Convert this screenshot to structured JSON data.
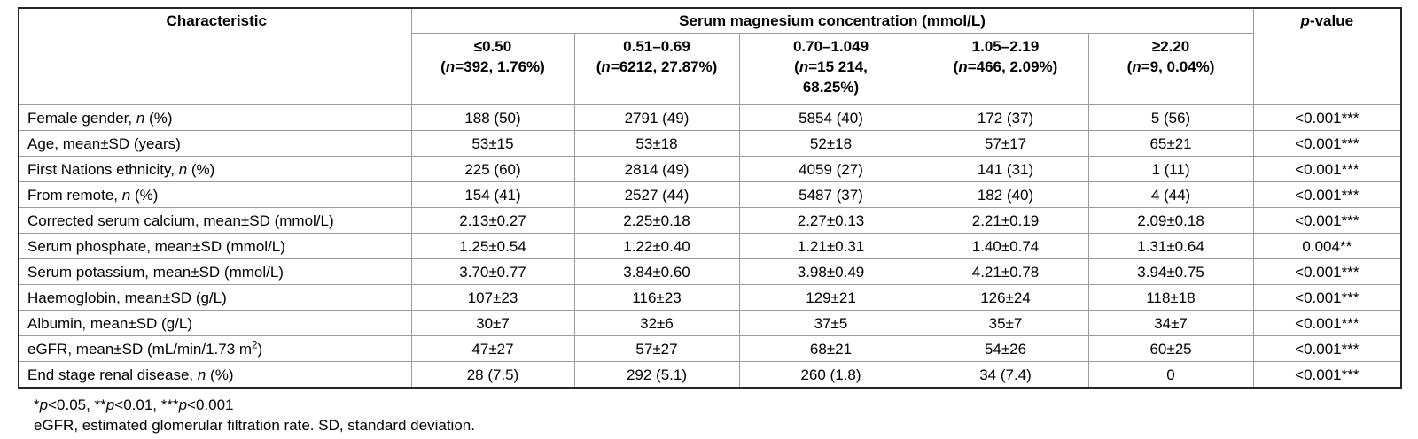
{
  "table": {
    "characteristic_header": "Characteristic",
    "group_header": "Serum magnesium concentration (mmol/L)",
    "pvalue_header_parts": [
      {
        "t": "p",
        "i": true
      },
      {
        "t": "-value"
      }
    ],
    "columns": [
      {
        "parts": [
          {
            "t": "≤0.50"
          },
          {
            "br": true
          },
          {
            "t": "("
          },
          {
            "t": "n",
            "i": true
          },
          {
            "t": "=392, 1.76%)"
          }
        ]
      },
      {
        "parts": [
          {
            "t": "0.51–0.69"
          },
          {
            "br": true
          },
          {
            "t": "("
          },
          {
            "t": "n",
            "i": true
          },
          {
            "t": "=6212, 27.87%)"
          }
        ]
      },
      {
        "parts": [
          {
            "t": "0.70–1.049"
          },
          {
            "br": true
          },
          {
            "t": "("
          },
          {
            "t": "n",
            "i": true
          },
          {
            "t": "=15 214,"
          },
          {
            "br": true
          },
          {
            "t": "68.25%)"
          }
        ]
      },
      {
        "parts": [
          {
            "t": "1.05–2.19"
          },
          {
            "br": true
          },
          {
            "t": "("
          },
          {
            "t": "n",
            "i": true
          },
          {
            "t": "=466, 2.09%)"
          }
        ]
      },
      {
        "parts": [
          {
            "t": "≥2.20"
          },
          {
            "br": true
          },
          {
            "t": "("
          },
          {
            "t": "n",
            "i": true
          },
          {
            "t": "=9, 0.04%)"
          }
        ]
      }
    ],
    "rows": [
      {
        "label_parts": [
          {
            "t": "Female gender, "
          },
          {
            "t": "n",
            "i": true
          },
          {
            "t": " (%)"
          }
        ],
        "values": [
          "188 (50)",
          "2791 (49)",
          "5854 (40)",
          "172 (37)",
          "5 (56)"
        ],
        "p": "<0.001***"
      },
      {
        "label_parts": [
          {
            "t": "Age, mean±SD (years)"
          }
        ],
        "values": [
          "53±15",
          "53±18",
          "52±18",
          "57±17",
          "65±21"
        ],
        "p": "<0.001***"
      },
      {
        "label_parts": [
          {
            "t": "First Nations ethnicity, "
          },
          {
            "t": "n",
            "i": true
          },
          {
            "t": " (%)"
          }
        ],
        "values": [
          "225 (60)",
          "2814 (49)",
          "4059 (27)",
          "141 (31)",
          "1 (11)"
        ],
        "p": "<0.001***"
      },
      {
        "label_parts": [
          {
            "t": "From remote, "
          },
          {
            "t": "n",
            "i": true
          },
          {
            "t": " (%)"
          }
        ],
        "values": [
          "154 (41)",
          "2527 (44)",
          "5487 (37)",
          "182 (40)",
          "4 (44)"
        ],
        "p": "<0.001***"
      },
      {
        "label_parts": [
          {
            "t": "Corrected serum calcium, mean±SD (mmol/L)"
          }
        ],
        "values": [
          "2.13±0.27",
          "2.25±0.18",
          "2.27±0.13",
          "2.21±0.19",
          "2.09±0.18"
        ],
        "p": "<0.001***"
      },
      {
        "label_parts": [
          {
            "t": "Serum phosphate, mean±SD (mmol/L)"
          }
        ],
        "values": [
          "1.25±0.54",
          "1.22±0.40",
          "1.21±0.31",
          "1.40±0.74",
          "1.31±0.64"
        ],
        "p": "0.004**"
      },
      {
        "label_parts": [
          {
            "t": "Serum potassium, mean±SD (mmol/L)"
          }
        ],
        "values": [
          "3.70±0.77",
          "3.84±0.60",
          "3.98±0.49",
          "4.21±0.78",
          "3.94±0.75"
        ],
        "p": "<0.001***"
      },
      {
        "label_parts": [
          {
            "t": "Haemoglobin, mean±SD (g/L)"
          }
        ],
        "values": [
          "107±23",
          "116±23",
          "129±21",
          "126±24",
          "118±18"
        ],
        "p": "<0.001***"
      },
      {
        "label_parts": [
          {
            "t": "Albumin, mean±SD (g/L)"
          }
        ],
        "values": [
          "30±7",
          "32±6",
          "37±5",
          "35±7",
          "34±7"
        ],
        "p": "<0.001***"
      },
      {
        "label_parts": [
          {
            "t": "eGFR, mean±SD (mL/min/1.73 m"
          },
          {
            "t": "2",
            "sup": true
          },
          {
            "t": ")"
          }
        ],
        "values": [
          "47±27",
          "57±27",
          "68±21",
          "54±26",
          "60±25"
        ],
        "p": "<0.001***"
      },
      {
        "label_parts": [
          {
            "t": "End stage renal disease, "
          },
          {
            "t": "n",
            "i": true
          },
          {
            "t": " (%)"
          }
        ],
        "values": [
          "28 (7.5)",
          "292 (5.1)",
          "260 (1.8)",
          "34 (7.4)",
          "0"
        ],
        "p": "<0.001***"
      }
    ],
    "footnotes": [
      [
        {
          "t": "*"
        },
        {
          "t": "p",
          "i": true
        },
        {
          "t": "<0.05, **"
        },
        {
          "t": "p",
          "i": true
        },
        {
          "t": "<0.01, ***"
        },
        {
          "t": "p",
          "i": true
        },
        {
          "t": "<0.001"
        }
      ],
      [
        {
          "t": "eGFR, estimated glomerular filtration rate. SD, standard deviation."
        }
      ]
    ]
  }
}
